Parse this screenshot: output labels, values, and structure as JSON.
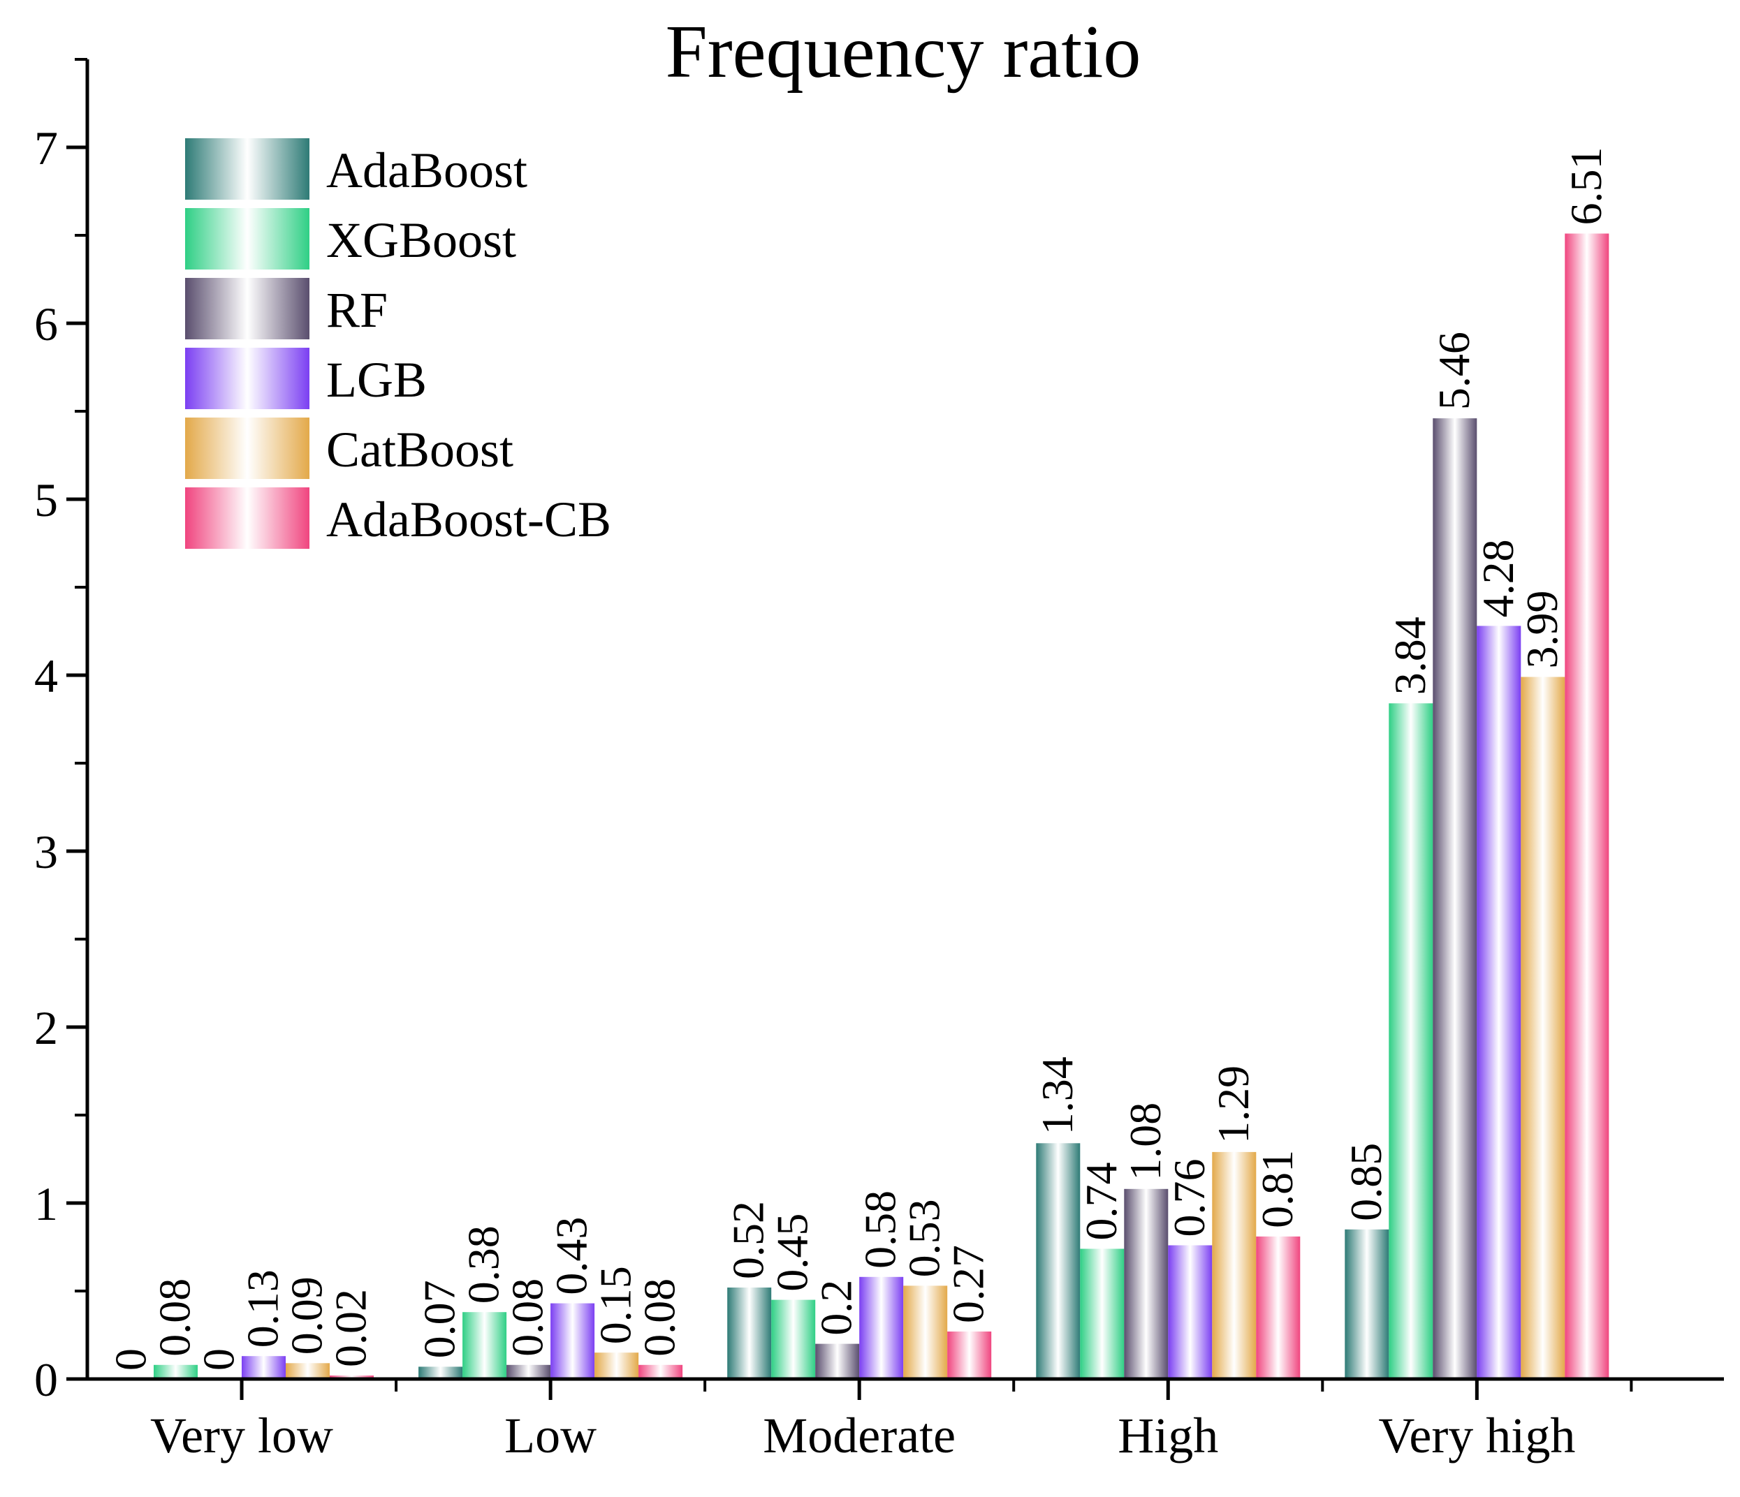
{
  "chart_data": {
    "type": "bar",
    "title": "Frequency ratio",
    "xlabel": "",
    "ylabel": "",
    "ylim": [
      0,
      7.5
    ],
    "yticks": [
      0,
      1,
      2,
      3,
      4,
      5,
      6,
      7
    ],
    "ytick_labels": [
      "0",
      "1",
      "2",
      "3",
      "4",
      "5",
      "6",
      "7"
    ],
    "categories": [
      "Very low",
      "Low",
      "Moderate",
      "High",
      "Very high"
    ],
    "legend_position": "top-left",
    "series": [
      {
        "name": "AdaBoost",
        "color": "#2e7b76",
        "values": [
          0,
          0.07,
          0.52,
          1.34,
          0.85
        ],
        "labels": [
          "0",
          "0.07",
          "0.52",
          "1.34",
          "0.85"
        ]
      },
      {
        "name": "XGBoost",
        "color": "#2fcf85",
        "values": [
          0.08,
          0.38,
          0.45,
          0.74,
          3.84
        ],
        "labels": [
          "0.08",
          "0.38",
          "0.45",
          "0.74",
          "3.84"
        ]
      },
      {
        "name": "RF",
        "color": "#5a4e6e",
        "values": [
          0,
          0.08,
          0.2,
          1.08,
          5.46
        ],
        "labels": [
          "0",
          "0.08",
          "0.2",
          "1.08",
          "5.46"
        ]
      },
      {
        "name": "LGB",
        "color": "#7b3ff2",
        "values": [
          0.13,
          0.43,
          0.58,
          0.76,
          4.28
        ],
        "labels": [
          "0.13",
          "0.43",
          "0.58",
          "0.76",
          "4.28"
        ]
      },
      {
        "name": "CatBoost",
        "color": "#e3a94a",
        "values": [
          0.09,
          0.15,
          0.53,
          1.29,
          3.99
        ],
        "labels": [
          "0.09",
          "0.15",
          "0.53",
          "1.29",
          "3.99"
        ]
      },
      {
        "name": "AdaBoost-CB",
        "color": "#f0457f",
        "values": [
          0.02,
          0.08,
          0.27,
          0.81,
          6.51
        ],
        "labels": [
          "0.02",
          "0.08",
          "0.27",
          "0.81",
          "6.51"
        ]
      }
    ]
  }
}
